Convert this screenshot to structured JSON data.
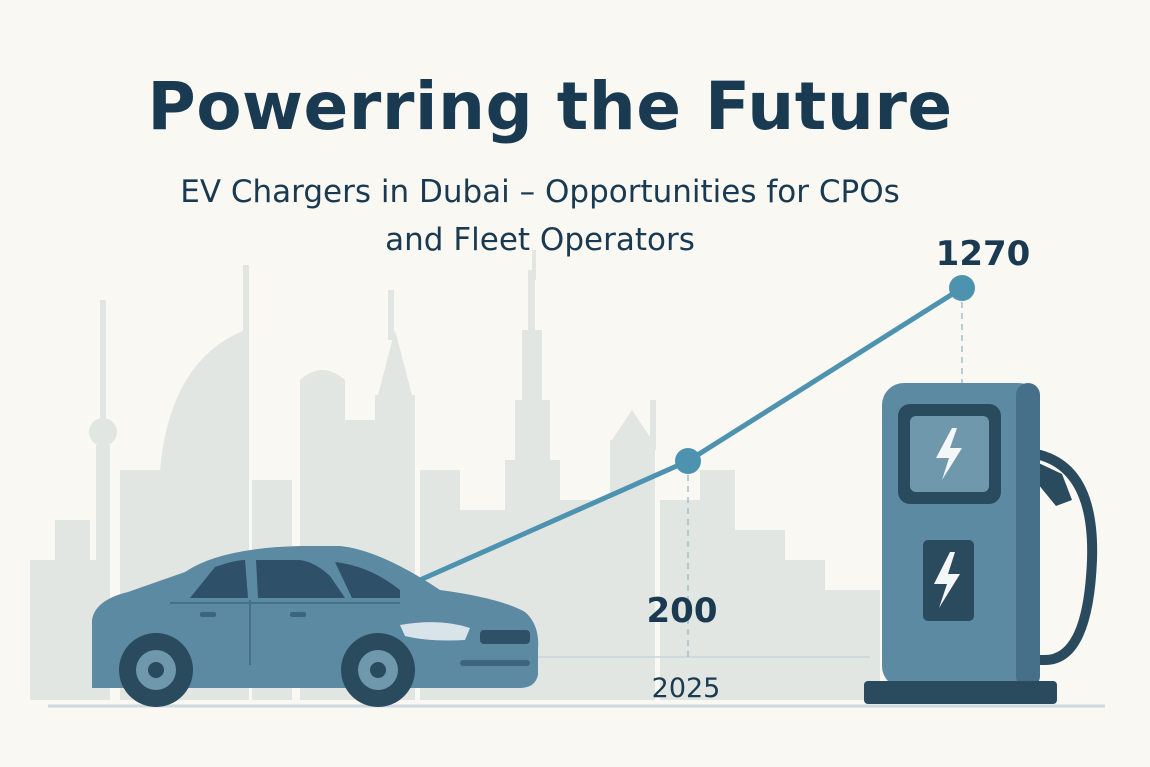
{
  "header": {
    "title": "Powerring the Future",
    "subtitle_line1": "EV Chargers in Dubai – Opportunities for CPOs",
    "subtitle_line2": "and Fleet Operators"
  },
  "graph": {
    "start_value": "200",
    "start_year": "2025",
    "end_value": "1270"
  },
  "icons": {
    "car": "car-icon",
    "charger": "charging-station-icon",
    "bolt": "lightning-bolt-icon",
    "skyline": "dubai-skyline"
  },
  "colors": {
    "background": "#faf8f2",
    "title": "#1a3a52",
    "accent": "#4d93b0",
    "car_body": "#5c8aa2",
    "charger_body": "#5c8aa2",
    "dark": "#2a4a5e",
    "skyline": "#dfe5e1"
  }
}
